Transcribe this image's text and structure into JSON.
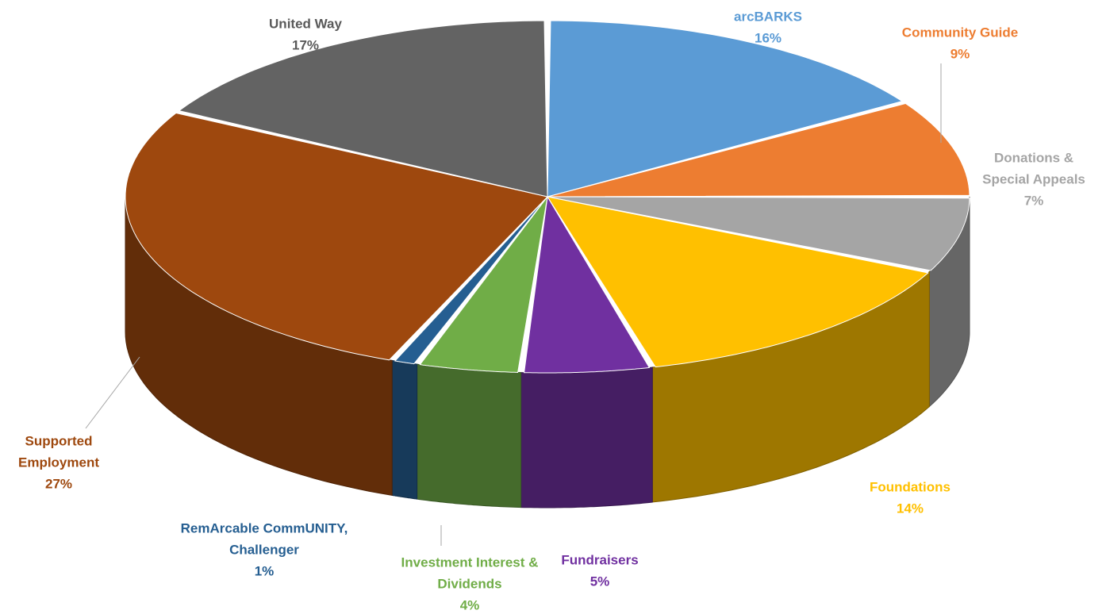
{
  "chart_data": {
    "type": "pie",
    "title": "",
    "slices": [
      {
        "name": "arcBARKS",
        "value": 16,
        "label": "16%",
        "color": "#5B9BD5",
        "label_lines": [
          "arcBARKS"
        ]
      },
      {
        "name": "Community Guide",
        "value": 9,
        "label": "9%",
        "color": "#ED7D31",
        "label_lines": [
          "Community Guide"
        ]
      },
      {
        "name": "Donations & Special Appeals",
        "value": 7,
        "label": "7%",
        "color": "#A5A5A5",
        "label_lines": [
          "Donations &",
          "Special Appeals"
        ]
      },
      {
        "name": "Foundations",
        "value": 14,
        "label": "14%",
        "color": "#FFC000",
        "label_lines": [
          "Foundations"
        ]
      },
      {
        "name": "Fundraisers",
        "value": 5,
        "label": "5%",
        "color": "#7030A0",
        "label_lines": [
          "Fundraisers"
        ]
      },
      {
        "name": "Investment Interest & Dividends",
        "value": 4,
        "label": "4%",
        "color": "#70AD47",
        "label_lines": [
          "Investment Interest &",
          "Dividends"
        ]
      },
      {
        "name": "RemArcable CommUNITY, Challenger",
        "value": 1,
        "label": "1%",
        "color": "#255E91",
        "label_lines": [
          "RemArcable CommUNITY,",
          "Challenger"
        ]
      },
      {
        "name": "Supported Employment",
        "value": 27,
        "label": "27%",
        "color": "#9E480E",
        "label_lines": [
          "Supported",
          "Employment"
        ]
      },
      {
        "name": "United Way",
        "value": 17,
        "label": "17%",
        "color": "#636363",
        "label_lines": [
          "United Way"
        ]
      }
    ],
    "legend": "none",
    "style": "3d-exploded-free"
  }
}
